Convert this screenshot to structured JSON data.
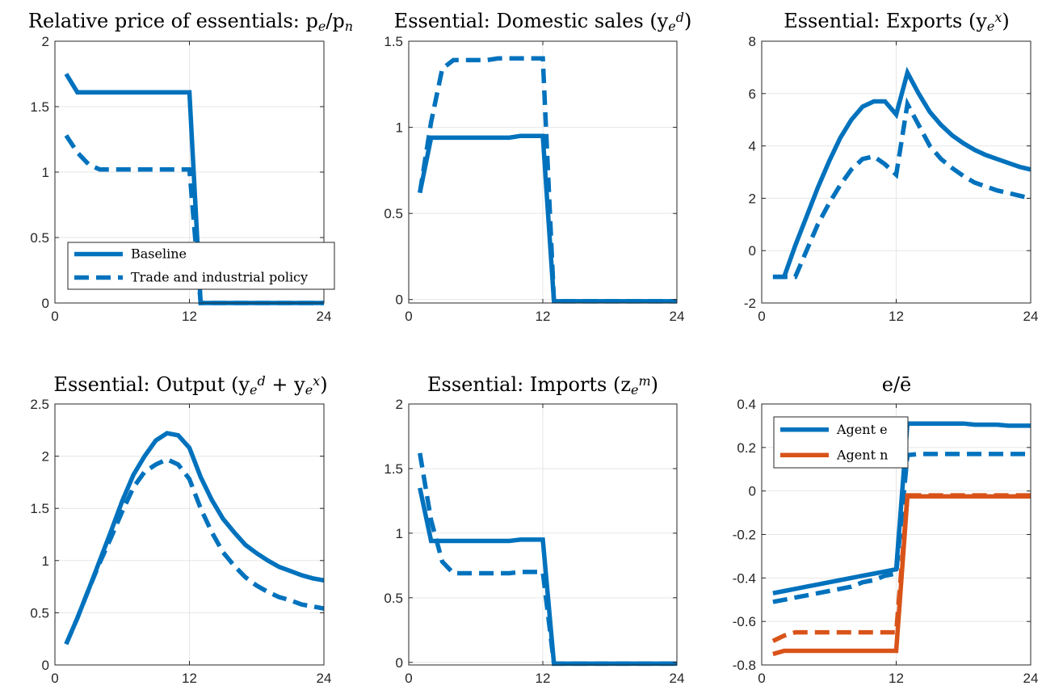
{
  "palette": {
    "blue": "#0072BD",
    "orange": "#D95319"
  },
  "chart_data": [
    {
      "type": "line",
      "title": "Relative price of essentials: p_e/p_n",
      "xlabel": "",
      "ylabel": "",
      "xlim": [
        0,
        24
      ],
      "ylim": [
        0,
        2
      ],
      "xticks": [
        0,
        12,
        24
      ],
      "yticks": [
        0,
        0.5,
        1,
        1.5,
        2
      ],
      "grid": true,
      "legend_position": "bottom-left",
      "series": [
        {
          "name": "Baseline",
          "color": "blue",
          "style": "solid",
          "x": [
            1,
            2,
            3,
            4,
            5,
            6,
            7,
            8,
            9,
            10,
            11,
            12,
            13,
            14,
            15,
            16,
            17,
            18,
            19,
            20,
            21,
            22,
            23,
            24
          ],
          "y": [
            1.75,
            1.61,
            1.61,
            1.61,
            1.61,
            1.61,
            1.61,
            1.61,
            1.61,
            1.61,
            1.61,
            1.61,
            0,
            0,
            0,
            0,
            0,
            0,
            0,
            0,
            0,
            0,
            0,
            0
          ]
        },
        {
          "name": "Trade and industrial policy",
          "color": "blue",
          "style": "dashed",
          "x": [
            1,
            2,
            3,
            4,
            5,
            6,
            7,
            8,
            9,
            10,
            11,
            12,
            13,
            14,
            15,
            16,
            17,
            18,
            19,
            20,
            21,
            22,
            23,
            24
          ],
          "y": [
            1.28,
            1.15,
            1.06,
            1.02,
            1.02,
            1.02,
            1.02,
            1.02,
            1.02,
            1.02,
            1.02,
            1.02,
            0,
            0,
            0,
            0,
            0,
            0,
            0,
            0,
            0,
            0,
            0,
            0
          ]
        }
      ]
    },
    {
      "type": "line",
      "title": "Essential: Domestic sales (y_e^d)",
      "xlabel": "",
      "ylabel": "",
      "xlim": [
        0,
        24
      ],
      "ylim": [
        -0.02,
        1.5
      ],
      "xticks": [
        0,
        12,
        24
      ],
      "yticks": [
        0,
        0.5,
        1,
        1.5
      ],
      "grid": true,
      "series": [
        {
          "color": "blue",
          "style": "solid",
          "x": [
            1,
            2,
            3,
            4,
            5,
            6,
            7,
            8,
            9,
            10,
            11,
            12,
            13,
            14,
            15,
            16,
            17,
            18,
            19,
            20,
            21,
            22,
            23,
            24
          ],
          "y": [
            0.62,
            0.94,
            0.94,
            0.94,
            0.94,
            0.94,
            0.94,
            0.94,
            0.94,
            0.95,
            0.95,
            0.95,
            -0.01,
            -0.01,
            -0.01,
            -0.01,
            -0.01,
            -0.01,
            -0.01,
            -0.01,
            -0.01,
            -0.01,
            -0.01,
            -0.01
          ]
        },
        {
          "color": "blue",
          "style": "dashed",
          "x": [
            1,
            2,
            3,
            4,
            5,
            6,
            7,
            8,
            9,
            10,
            11,
            12,
            13,
            14,
            15,
            16,
            17,
            18,
            19,
            20,
            21,
            22,
            23,
            24
          ],
          "y": [
            0.62,
            1.03,
            1.34,
            1.39,
            1.39,
            1.39,
            1.39,
            1.4,
            1.4,
            1.4,
            1.4,
            1.4,
            -0.01,
            -0.01,
            -0.01,
            -0.01,
            -0.01,
            -0.01,
            -0.01,
            -0.01,
            -0.01,
            -0.01,
            -0.01,
            -0.01
          ]
        }
      ]
    },
    {
      "type": "line",
      "title": "Essential: Exports (y_e^x)",
      "xlabel": "",
      "ylabel": "",
      "xlim": [
        0,
        24
      ],
      "ylim": [
        -2,
        8
      ],
      "xticks": [
        0,
        12,
        24
      ],
      "yticks": [
        -2,
        0,
        2,
        4,
        6,
        8
      ],
      "grid": true,
      "series": [
        {
          "color": "blue",
          "style": "solid",
          "x": [
            1,
            2,
            3,
            4,
            5,
            6,
            7,
            8,
            9,
            10,
            11,
            12,
            13,
            14,
            15,
            16,
            17,
            18,
            19,
            20,
            21,
            22,
            23,
            24
          ],
          "y": [
            -1.0,
            -1.0,
            0.2,
            1.3,
            2.4,
            3.4,
            4.3,
            5.0,
            5.5,
            5.7,
            5.7,
            5.2,
            6.8,
            6.0,
            5.3,
            4.8,
            4.4,
            4.1,
            3.85,
            3.65,
            3.5,
            3.35,
            3.2,
            3.1
          ]
        },
        {
          "color": "blue",
          "style": "dashed",
          "x": [
            1,
            2,
            3,
            4,
            5,
            6,
            7,
            8,
            9,
            10,
            11,
            12,
            13,
            14,
            15,
            16,
            17,
            18,
            19,
            20,
            21,
            22,
            23,
            24
          ],
          "y": [
            -1.0,
            -1.0,
            -1.0,
            0.0,
            1.0,
            1.8,
            2.5,
            3.1,
            3.5,
            3.6,
            3.3,
            2.9,
            5.6,
            4.8,
            4.0,
            3.5,
            3.15,
            2.85,
            2.6,
            2.45,
            2.3,
            2.2,
            2.1,
            2.0
          ]
        }
      ]
    },
    {
      "type": "line",
      "title": "Essential: Output (y_e^d + y_e^x)",
      "xlabel": "",
      "ylabel": "",
      "xlim": [
        0,
        24
      ],
      "ylim": [
        0,
        2.5
      ],
      "xticks": [
        0,
        12,
        24
      ],
      "yticks": [
        0,
        0.5,
        1,
        1.5,
        2,
        2.5
      ],
      "grid": true,
      "series": [
        {
          "color": "blue",
          "style": "solid",
          "x": [
            1,
            2,
            3,
            4,
            5,
            6,
            7,
            8,
            9,
            10,
            11,
            12,
            13,
            14,
            15,
            16,
            17,
            18,
            19,
            20,
            21,
            22,
            23,
            24
          ],
          "y": [
            0.2,
            0.45,
            0.72,
            1.0,
            1.28,
            1.57,
            1.82,
            2.0,
            2.15,
            2.22,
            2.2,
            2.08,
            1.8,
            1.58,
            1.4,
            1.27,
            1.15,
            1.07,
            1.0,
            0.94,
            0.9,
            0.86,
            0.83,
            0.81
          ]
        },
        {
          "color": "blue",
          "style": "dashed",
          "x": [
            1,
            2,
            3,
            4,
            5,
            6,
            7,
            8,
            9,
            10,
            11,
            12,
            13,
            14,
            15,
            16,
            17,
            18,
            19,
            20,
            21,
            22,
            23,
            24
          ],
          "y": [
            0.2,
            0.45,
            0.72,
            0.98,
            1.22,
            1.47,
            1.7,
            1.85,
            1.92,
            1.97,
            1.92,
            1.78,
            1.5,
            1.27,
            1.08,
            0.95,
            0.84,
            0.76,
            0.7,
            0.65,
            0.62,
            0.58,
            0.56,
            0.54
          ]
        }
      ]
    },
    {
      "type": "line",
      "title": "Essential: Imports (z_e^m)",
      "xlabel": "",
      "ylabel": "",
      "xlim": [
        0,
        24
      ],
      "ylim": [
        -0.02,
        2
      ],
      "xticks": [
        0,
        12,
        24
      ],
      "yticks": [
        0,
        0.5,
        1,
        1.5,
        2
      ],
      "grid": true,
      "series": [
        {
          "color": "blue",
          "style": "solid",
          "x": [
            1,
            2,
            3,
            4,
            5,
            6,
            7,
            8,
            9,
            10,
            11,
            12,
            13,
            14,
            15,
            16,
            17,
            18,
            19,
            20,
            21,
            22,
            23,
            24
          ],
          "y": [
            1.35,
            0.94,
            0.94,
            0.94,
            0.94,
            0.94,
            0.94,
            0.94,
            0.94,
            0.95,
            0.95,
            0.95,
            -0.01,
            -0.01,
            -0.01,
            -0.01,
            -0.01,
            -0.01,
            -0.01,
            -0.01,
            -0.01,
            -0.01,
            -0.01,
            -0.01
          ]
        },
        {
          "color": "blue",
          "style": "dashed",
          "x": [
            1,
            2,
            3,
            4,
            5,
            6,
            7,
            8,
            9,
            10,
            11,
            12,
            13,
            14,
            15,
            16,
            17,
            18,
            19,
            20,
            21,
            22,
            23,
            24
          ],
          "y": [
            1.62,
            1.1,
            0.78,
            0.69,
            0.69,
            0.69,
            0.69,
            0.69,
            0.69,
            0.7,
            0.7,
            0.7,
            -0.01,
            -0.01,
            -0.01,
            -0.01,
            -0.01,
            -0.01,
            -0.01,
            -0.01,
            -0.01,
            -0.01,
            -0.01,
            -0.01
          ]
        }
      ]
    },
    {
      "type": "line",
      "title": "e/ē",
      "xlabel": "",
      "ylabel": "",
      "xlim": [
        0,
        24
      ],
      "ylim": [
        -0.8,
        0.4
      ],
      "xticks": [
        0,
        12,
        24
      ],
      "yticks": [
        -0.8,
        -0.6,
        -0.4,
        -0.2,
        0,
        0.2,
        0.4
      ],
      "grid": true,
      "legend_position": "top-left",
      "series": [
        {
          "name": "Agent e",
          "color": "blue",
          "style": "solid",
          "x": [
            1,
            2,
            3,
            4,
            5,
            6,
            7,
            8,
            9,
            10,
            11,
            12,
            13,
            14,
            15,
            16,
            17,
            18,
            19,
            20,
            21,
            22,
            23,
            24
          ],
          "y": [
            -0.47,
            -0.46,
            -0.45,
            -0.44,
            -0.43,
            -0.42,
            -0.41,
            -0.4,
            -0.39,
            -0.38,
            -0.37,
            -0.36,
            0.31,
            0.31,
            0.31,
            0.31,
            0.31,
            0.31,
            0.305,
            0.305,
            0.305,
            0.3,
            0.3,
            0.3
          ]
        },
        {
          "color": "blue",
          "style": "dashed",
          "x": [
            1,
            2,
            3,
            4,
            5,
            6,
            7,
            8,
            9,
            10,
            11,
            12,
            13,
            14,
            15,
            16,
            17,
            18,
            19,
            20,
            21,
            22,
            23,
            24
          ],
          "y": [
            -0.51,
            -0.5,
            -0.49,
            -0.48,
            -0.47,
            -0.46,
            -0.45,
            -0.44,
            -0.42,
            -0.41,
            -0.39,
            -0.38,
            0.165,
            0.17,
            0.17,
            0.17,
            0.17,
            0.17,
            0.17,
            0.17,
            0.17,
            0.17,
            0.17,
            0.17
          ]
        },
        {
          "name": "Agent n",
          "color": "orange",
          "style": "solid",
          "x": [
            1,
            2,
            3,
            4,
            5,
            6,
            7,
            8,
            9,
            10,
            11,
            12,
            13,
            14,
            15,
            16,
            17,
            18,
            19,
            20,
            21,
            22,
            23,
            24
          ],
          "y": [
            -0.75,
            -0.735,
            -0.735,
            -0.735,
            -0.735,
            -0.735,
            -0.735,
            -0.735,
            -0.735,
            -0.735,
            -0.735,
            -0.735,
            -0.025,
            -0.025,
            -0.025,
            -0.025,
            -0.025,
            -0.025,
            -0.025,
            -0.025,
            -0.025,
            -0.025,
            -0.025,
            -0.025
          ]
        },
        {
          "color": "orange",
          "style": "dashed",
          "x": [
            1,
            2,
            3,
            4,
            5,
            6,
            7,
            8,
            9,
            10,
            11,
            12,
            13,
            14,
            15,
            16,
            17,
            18,
            19,
            20,
            21,
            22,
            23,
            24
          ],
          "y": [
            -0.69,
            -0.665,
            -0.65,
            -0.65,
            -0.65,
            -0.65,
            -0.65,
            -0.65,
            -0.65,
            -0.65,
            -0.65,
            -0.65,
            -0.02,
            -0.02,
            -0.02,
            -0.02,
            -0.02,
            -0.02,
            -0.02,
            -0.02,
            -0.02,
            -0.02,
            -0.02,
            -0.02
          ]
        }
      ]
    }
  ]
}
